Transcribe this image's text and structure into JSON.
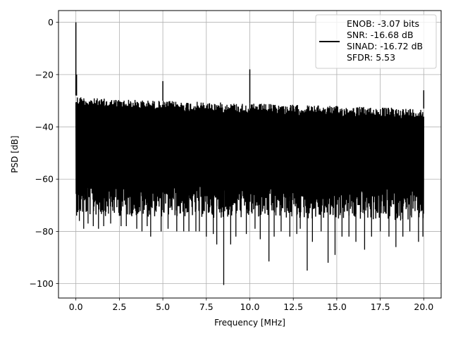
{
  "chart_data": {
    "type": "line",
    "xlabel": "Frequency [MHz]",
    "ylabel": "PSD [dB]",
    "xlim": [
      -1.0,
      21.0
    ],
    "ylim": [
      -105.5,
      4.5
    ],
    "x_ticks": [
      {
        "value": 0.0,
        "label": "0.0"
      },
      {
        "value": 2.5,
        "label": "2.5"
      },
      {
        "value": 5.0,
        "label": "5.0"
      },
      {
        "value": 7.5,
        "label": "7.5"
      },
      {
        "value": 10.0,
        "label": "10.0"
      },
      {
        "value": 12.5,
        "label": "12.5"
      },
      {
        "value": 15.0,
        "label": "15.0"
      },
      {
        "value": 17.5,
        "label": "17.5"
      },
      {
        "value": 20.0,
        "label": "20.0"
      }
    ],
    "y_ticks": [
      {
        "value": 0,
        "label": "0"
      },
      {
        "value": -20,
        "label": "−20"
      },
      {
        "value": -40,
        "label": "−40"
      },
      {
        "value": -60,
        "label": "−60"
      },
      {
        "value": -80,
        "label": "−80"
      },
      {
        "value": -100,
        "label": "−100"
      }
    ],
    "grid": true,
    "legend_position": "top-right",
    "legend": {
      "lines": [
        "ENOB: -3.07 bits",
        "SNR: -16.68 dB",
        "SINAD: -16.72 dB",
        "SFDR: 5.53"
      ],
      "color": "#000000"
    },
    "series": [
      {
        "color": "#000000",
        "style": "dense-noise-band",
        "x_start": 0.0,
        "x_end": 20.0,
        "band_upper": [
          [
            0.0,
            -28
          ],
          [
            1.0,
            -29
          ],
          [
            5.0,
            -30
          ],
          [
            10.0,
            -31
          ],
          [
            15.0,
            -32
          ],
          [
            20.0,
            -33
          ]
        ],
        "band_lower": [
          [
            0.0,
            -62
          ],
          [
            20.0,
            -64
          ]
        ],
        "peaks": [
          {
            "x": 0.0,
            "y": 0
          },
          {
            "x": 0.04,
            "y": -20
          },
          {
            "x": 5.0,
            "y": -22.5
          },
          {
            "x": 10.0,
            "y": -18
          },
          {
            "x": 20.0,
            "y": -26
          }
        ],
        "dips": [
          {
            "x": 0.2,
            "y": -76
          },
          {
            "x": 0.45,
            "y": -79
          },
          {
            "x": 0.7,
            "y": -77
          },
          {
            "x": 1.0,
            "y": -78
          },
          {
            "x": 1.3,
            "y": -79
          },
          {
            "x": 1.6,
            "y": -78
          },
          {
            "x": 2.0,
            "y": -77
          },
          {
            "x": 2.6,
            "y": -78
          },
          {
            "x": 2.9,
            "y": -78
          },
          {
            "x": 3.5,
            "y": -79
          },
          {
            "x": 3.8,
            "y": -80
          },
          {
            "x": 4.1,
            "y": -78
          },
          {
            "x": 4.3,
            "y": -82
          },
          {
            "x": 4.9,
            "y": -80
          },
          {
            "x": 5.3,
            "y": -79
          },
          {
            "x": 5.8,
            "y": -80
          },
          {
            "x": 6.2,
            "y": -80
          },
          {
            "x": 6.5,
            "y": -80
          },
          {
            "x": 6.9,
            "y": -80
          },
          {
            "x": 7.1,
            "y": -80
          },
          {
            "x": 7.5,
            "y": -82
          },
          {
            "x": 7.9,
            "y": -81
          },
          {
            "x": 8.1,
            "y": -85
          },
          {
            "x": 8.5,
            "y": -100.5
          },
          {
            "x": 8.9,
            "y": -85
          },
          {
            "x": 9.2,
            "y": -82
          },
          {
            "x": 9.8,
            "y": -81
          },
          {
            "x": 10.3,
            "y": -79
          },
          {
            "x": 10.6,
            "y": -83
          },
          {
            "x": 11.1,
            "y": -91.5
          },
          {
            "x": 11.4,
            "y": -82
          },
          {
            "x": 11.8,
            "y": -80
          },
          {
            "x": 12.3,
            "y": -82
          },
          {
            "x": 12.7,
            "y": -81
          },
          {
            "x": 12.9,
            "y": -79
          },
          {
            "x": 13.3,
            "y": -95
          },
          {
            "x": 13.6,
            "y": -84
          },
          {
            "x": 14.1,
            "y": -80
          },
          {
            "x": 14.5,
            "y": -92
          },
          {
            "x": 14.9,
            "y": -89
          },
          {
            "x": 15.3,
            "y": -82
          },
          {
            "x": 15.7,
            "y": -82
          },
          {
            "x": 16.1,
            "y": -84
          },
          {
            "x": 16.6,
            "y": -87
          },
          {
            "x": 17.0,
            "y": -82
          },
          {
            "x": 17.5,
            "y": -80
          },
          {
            "x": 18.0,
            "y": -82
          },
          {
            "x": 18.4,
            "y": -86
          },
          {
            "x": 18.8,
            "y": -82
          },
          {
            "x": 19.2,
            "y": -80
          },
          {
            "x": 19.7,
            "y": -84
          },
          {
            "x": 19.95,
            "y": -82
          }
        ]
      }
    ]
  }
}
